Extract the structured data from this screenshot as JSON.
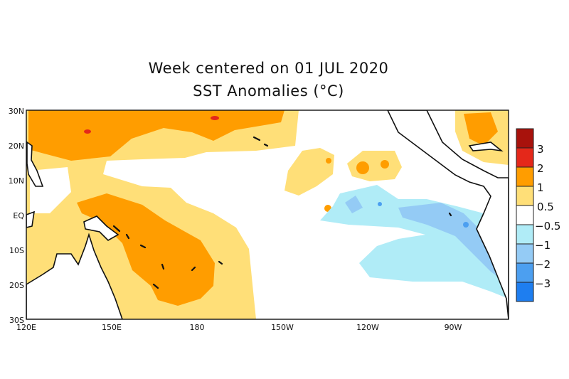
{
  "title": {
    "line1": "Week centered on 01 JUL 2020",
    "line2": "SST Anomalies (°C)"
  },
  "map": {
    "region": "Tropical Pacific",
    "lat_range": [
      "30S",
      "30N"
    ],
    "lon_range": [
      "120E",
      "70W"
    ],
    "lat_labels": [
      "30N",
      "20N",
      "10N",
      "EQ",
      "10S",
      "20S",
      "30S"
    ],
    "lon_labels": [
      "120E",
      "150E",
      "180",
      "150W",
      "120W",
      "90W"
    ],
    "features": [
      "warm anomalies (+0.5 to +2 °C) across western and central Pacific",
      "isolated +2 to +3 °C patches near 25N",
      "cool anomalies (-0.5 to -2 °C) in eastern equatorial Pacific"
    ]
  },
  "colorbar": {
    "labels": [
      "3",
      "2",
      "1",
      "0.5",
      "−0.5",
      "−1",
      "−2",
      "−3"
    ],
    "colors": [
      "#a8120c",
      "#e4281a",
      "#ff9d00",
      "#ffdf78",
      "#ffffff",
      "#b0ecf7",
      "#94cbf5",
      "#4c9ff0",
      "#1e7ef0"
    ]
  }
}
